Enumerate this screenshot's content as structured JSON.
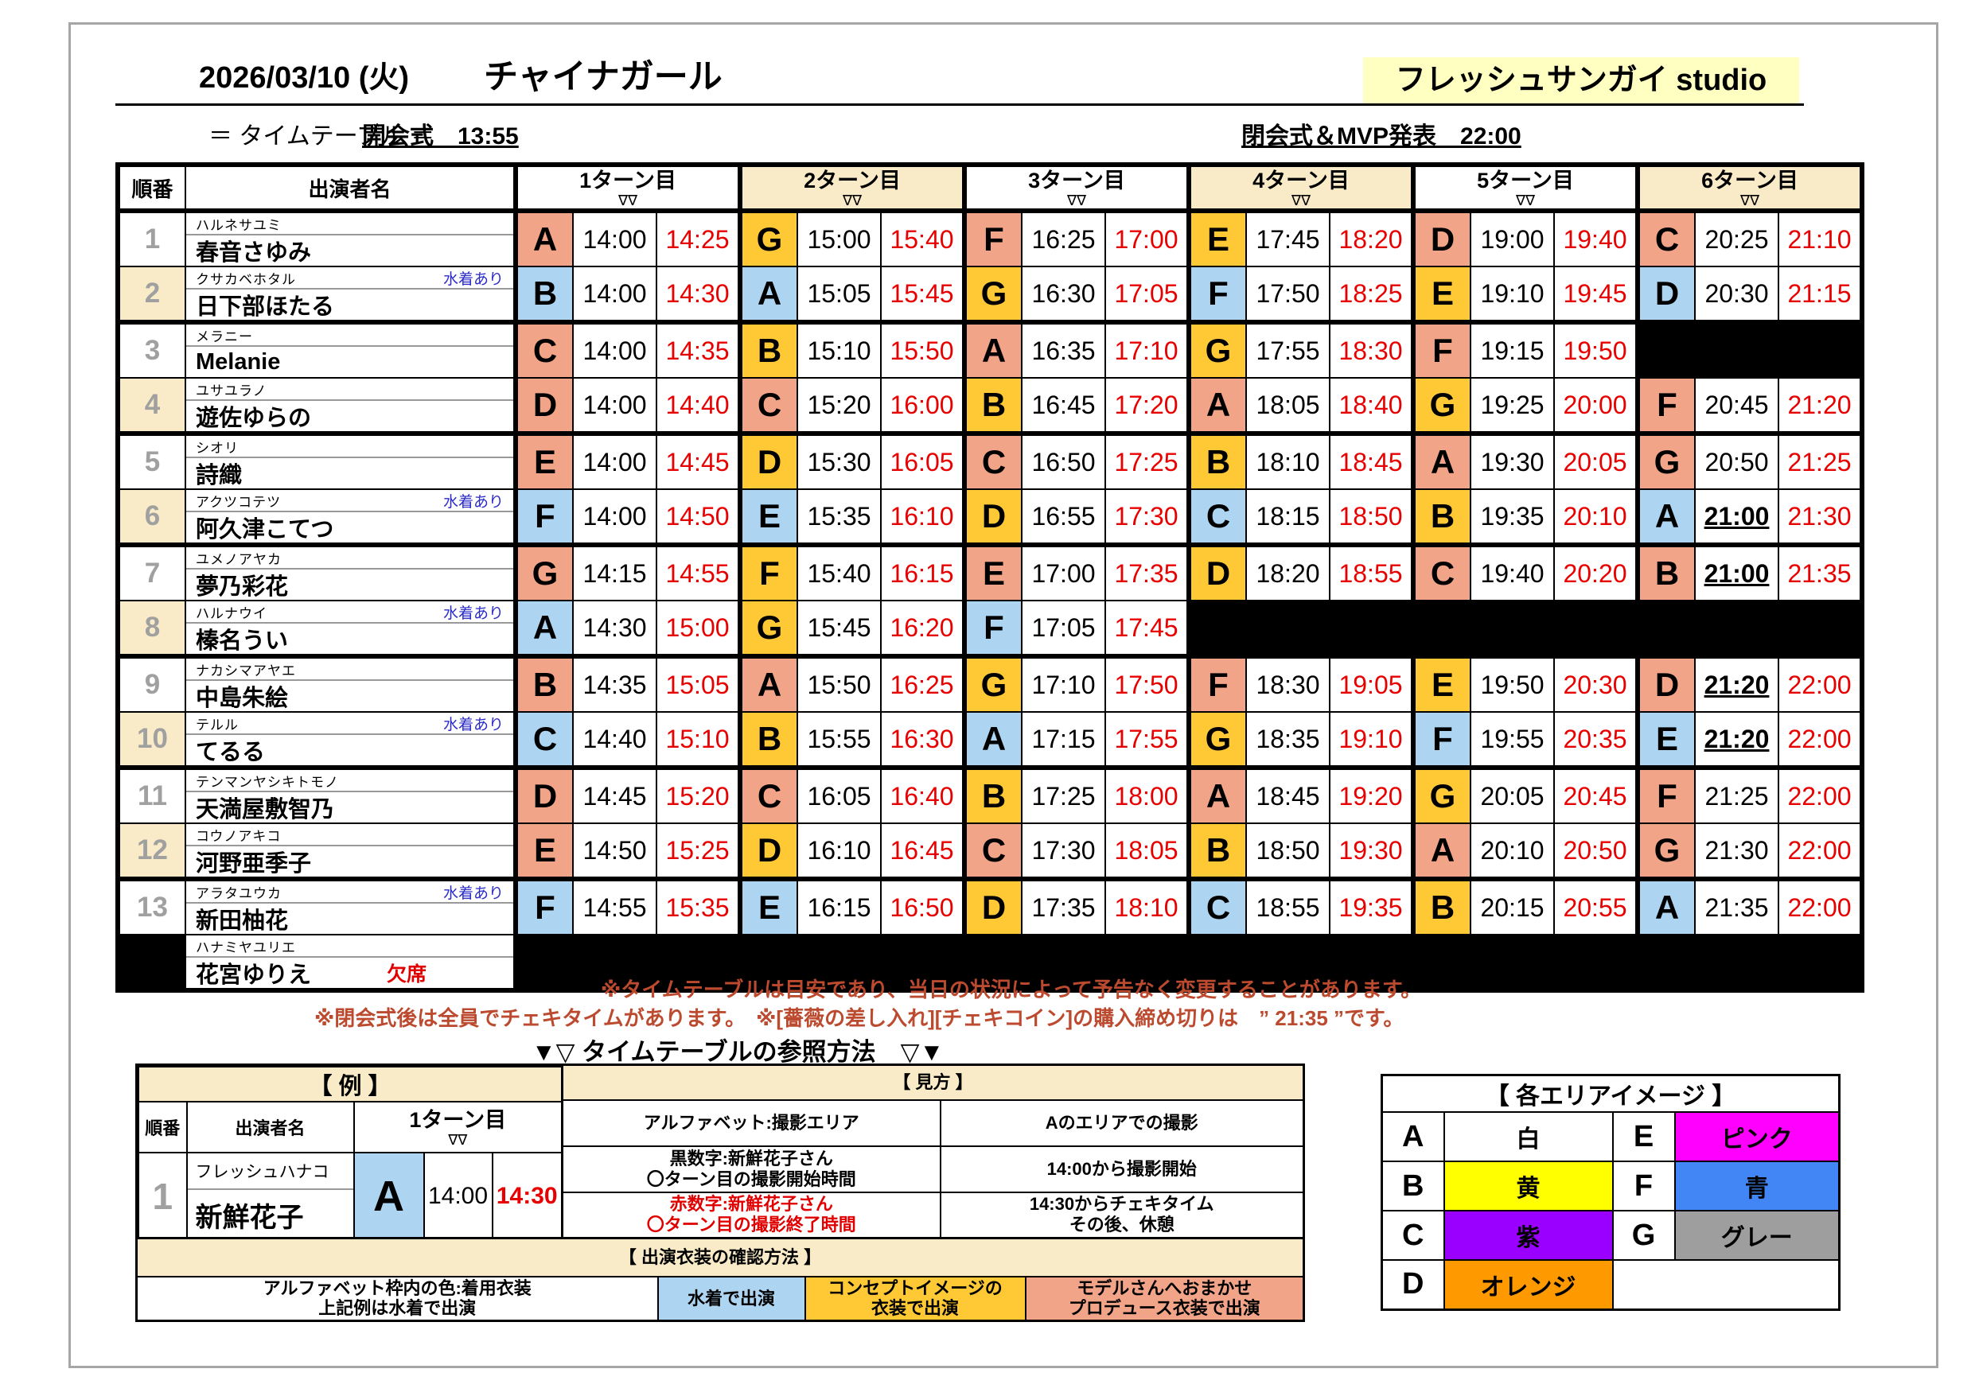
{
  "header": {
    "date": "2026/03/10 (火)",
    "title": "チャイナガール",
    "studio": "フレッシュサンガイ studio",
    "subtitle": "＝ タイムテーブル ＝",
    "opening": "開会式　13:55",
    "closing": "閉会式＆MVP発表　22:00"
  },
  "table": {
    "col_order": "順番",
    "col_name": "出演者名",
    "turn_labels": [
      "1ターン目",
      "2ターン目",
      "3ターン目",
      "4ターン目",
      "5ターン目",
      "6ターン目"
    ],
    "turn_marker": "∇∇",
    "fill_colors": {
      "s": "#F2A488",
      "g": "#FFC936",
      "b": "#ADD5F2"
    },
    "rows": [
      {
        "no": "1",
        "kana": "ハルネサユミ",
        "name": "春音さゆみ",
        "tag": "",
        "absent": false,
        "slots": [
          [
            "A",
            "s",
            "14:00",
            "14:25",
            0
          ],
          [
            "G",
            "g",
            "15:00",
            "15:40",
            0
          ],
          [
            "F",
            "s",
            "16:25",
            "17:00",
            0
          ],
          [
            "E",
            "g",
            "17:45",
            "18:20",
            0
          ],
          [
            "D",
            "s",
            "19:00",
            "19:40",
            0
          ],
          [
            "C",
            "s",
            "20:25",
            "21:10",
            0
          ]
        ]
      },
      {
        "no": "2",
        "kana": "クサカベホタル",
        "name": "日下部ほたる",
        "tag": "水着あり",
        "absent": false,
        "slots": [
          [
            "B",
            "b",
            "14:00",
            "14:30",
            0
          ],
          [
            "A",
            "b",
            "15:05",
            "15:45",
            0
          ],
          [
            "G",
            "g",
            "16:30",
            "17:05",
            0
          ],
          [
            "F",
            "b",
            "17:50",
            "18:25",
            0
          ],
          [
            "E",
            "g",
            "19:10",
            "19:45",
            0
          ],
          [
            "D",
            "b",
            "20:30",
            "21:15",
            0
          ]
        ]
      },
      {
        "no": "3",
        "kana": "メラニー",
        "name": "Melanie",
        "tag": "",
        "absent": false,
        "slots": [
          [
            "C",
            "s",
            "14:00",
            "14:35",
            0
          ],
          [
            "B",
            "g",
            "15:10",
            "15:50",
            0
          ],
          [
            "A",
            "s",
            "16:35",
            "17:10",
            0
          ],
          [
            "G",
            "g",
            "17:55",
            "18:30",
            0
          ],
          [
            "F",
            "s",
            "19:15",
            "19:50",
            0
          ],
          null
        ]
      },
      {
        "no": "4",
        "kana": "ユサユラノ",
        "name": "遊佐ゆらの",
        "tag": "",
        "absent": false,
        "slots": [
          [
            "D",
            "s",
            "14:00",
            "14:40",
            0
          ],
          [
            "C",
            "s",
            "15:20",
            "16:00",
            0
          ],
          [
            "B",
            "g",
            "16:45",
            "17:20",
            0
          ],
          [
            "A",
            "s",
            "18:05",
            "18:40",
            0
          ],
          [
            "G",
            "g",
            "19:25",
            "20:00",
            0
          ],
          [
            "F",
            "s",
            "20:45",
            "21:20",
            0
          ]
        ]
      },
      {
        "no": "5",
        "kana": "シオリ",
        "name": "詩織",
        "tag": "",
        "absent": false,
        "slots": [
          [
            "E",
            "s",
            "14:00",
            "14:45",
            0
          ],
          [
            "D",
            "g",
            "15:30",
            "16:05",
            0
          ],
          [
            "C",
            "s",
            "16:50",
            "17:25",
            0
          ],
          [
            "B",
            "g",
            "18:10",
            "18:45",
            0
          ],
          [
            "A",
            "s",
            "19:30",
            "20:05",
            0
          ],
          [
            "G",
            "s",
            "20:50",
            "21:25",
            0
          ]
        ]
      },
      {
        "no": "6",
        "kana": "アクツコテツ",
        "name": "阿久津こてつ",
        "tag": "水着あり",
        "absent": false,
        "slots": [
          [
            "F",
            "b",
            "14:00",
            "14:50",
            0
          ],
          [
            "E",
            "b",
            "15:35",
            "16:10",
            0
          ],
          [
            "D",
            "g",
            "16:55",
            "17:30",
            0
          ],
          [
            "C",
            "b",
            "18:15",
            "18:50",
            0
          ],
          [
            "B",
            "g",
            "19:35",
            "20:10",
            0
          ],
          [
            "A",
            "b",
            "21:00",
            "21:30",
            1
          ]
        ]
      },
      {
        "no": "7",
        "kana": "ユメノアヤカ",
        "name": "夢乃彩花",
        "tag": "",
        "absent": false,
        "slots": [
          [
            "G",
            "s",
            "14:15",
            "14:55",
            0
          ],
          [
            "F",
            "g",
            "15:40",
            "16:15",
            0
          ],
          [
            "E",
            "s",
            "17:00",
            "17:35",
            0
          ],
          [
            "D",
            "g",
            "18:20",
            "18:55",
            0
          ],
          [
            "C",
            "s",
            "19:40",
            "20:20",
            0
          ],
          [
            "B",
            "s",
            "21:00",
            "21:35",
            1
          ]
        ]
      },
      {
        "no": "8",
        "kana": "ハルナウイ",
        "name": "榛名うい",
        "tag": "水着あり",
        "absent": false,
        "slots": [
          [
            "A",
            "b",
            "14:30",
            "15:00",
            0
          ],
          [
            "G",
            "g",
            "15:45",
            "16:20",
            0
          ],
          [
            "F",
            "b",
            "17:05",
            "17:45",
            0
          ],
          null,
          null,
          null
        ]
      },
      {
        "no": "9",
        "kana": "ナカシマアヤエ",
        "name": "中島朱絵",
        "tag": "",
        "absent": false,
        "slots": [
          [
            "B",
            "s",
            "14:35",
            "15:05",
            0
          ],
          [
            "A",
            "s",
            "15:50",
            "16:25",
            0
          ],
          [
            "G",
            "g",
            "17:10",
            "17:50",
            0
          ],
          [
            "F",
            "s",
            "18:30",
            "19:05",
            0
          ],
          [
            "E",
            "g",
            "19:50",
            "20:30",
            0
          ],
          [
            "D",
            "s",
            "21:20",
            "22:00",
            1
          ]
        ]
      },
      {
        "no": "10",
        "kana": "テルル",
        "name": "てるる",
        "tag": "水着あり",
        "absent": false,
        "slots": [
          [
            "C",
            "b",
            "14:40",
            "15:10",
            0
          ],
          [
            "B",
            "g",
            "15:55",
            "16:30",
            0
          ],
          [
            "A",
            "b",
            "17:15",
            "17:55",
            0
          ],
          [
            "G",
            "g",
            "18:35",
            "19:10",
            0
          ],
          [
            "F",
            "b",
            "19:55",
            "20:35",
            0
          ],
          [
            "E",
            "b",
            "21:20",
            "22:00",
            1
          ]
        ]
      },
      {
        "no": "11",
        "kana": "テンマンヤシキトモノ",
        "name": "天満屋敷智乃",
        "tag": "",
        "absent": false,
        "slots": [
          [
            "D",
            "s",
            "14:45",
            "15:20",
            0
          ],
          [
            "C",
            "s",
            "16:05",
            "16:40",
            0
          ],
          [
            "B",
            "g",
            "17:25",
            "18:00",
            0
          ],
          [
            "A",
            "s",
            "18:45",
            "19:20",
            0
          ],
          [
            "G",
            "g",
            "20:05",
            "20:45",
            0
          ],
          [
            "F",
            "s",
            "21:25",
            "22:00",
            0
          ]
        ]
      },
      {
        "no": "12",
        "kana": "コウノアキコ",
        "name": "河野亜季子",
        "tag": "",
        "absent": false,
        "slots": [
          [
            "E",
            "s",
            "14:50",
            "15:25",
            0
          ],
          [
            "D",
            "g",
            "16:10",
            "16:45",
            0
          ],
          [
            "C",
            "s",
            "17:30",
            "18:05",
            0
          ],
          [
            "B",
            "g",
            "18:50",
            "19:30",
            0
          ],
          [
            "A",
            "s",
            "20:10",
            "20:50",
            0
          ],
          [
            "G",
            "s",
            "21:30",
            "22:00",
            0
          ]
        ]
      },
      {
        "no": "13",
        "kana": "アラタユウカ",
        "name": "新田柚花",
        "tag": "水着あり",
        "absent": false,
        "slots": [
          [
            "F",
            "b",
            "14:55",
            "15:35",
            0
          ],
          [
            "E",
            "b",
            "16:15",
            "16:50",
            0
          ],
          [
            "D",
            "g",
            "17:35",
            "18:10",
            0
          ],
          [
            "C",
            "b",
            "18:55",
            "19:35",
            0
          ],
          [
            "B",
            "g",
            "20:15",
            "20:55",
            0
          ],
          [
            "A",
            "b",
            "21:35",
            "22:00",
            0
          ]
        ]
      },
      {
        "no": "",
        "kana": "ハナミヤユリエ",
        "name": "花宮ゆりえ",
        "tag": "欠席",
        "absent": true,
        "slots": [
          null,
          null,
          null,
          null,
          null,
          null
        ]
      }
    ]
  },
  "notes": [
    "※タイムテーブルは目安であり、当日の状況によって予告なく変更することがあります。",
    "※閉会式後は全員でチェキタイムがあります。　※[薔薇の差し入れ][チェキコイン]の購入締め切りは　” 21:35 ”です。"
  ],
  "reference": {
    "title": "▼▽ タイムテーブルの参照方法　▽▼"
  },
  "example": {
    "header": "【 例 】",
    "col_order": "順番",
    "col_name": "出演者名",
    "turn_label": "1ターン目",
    "turn_marker": "∇∇",
    "row": {
      "no": "1",
      "kana": "フレッシュハナコ",
      "name": "新鮮花子",
      "area": "A",
      "start": "14:00",
      "end": "14:30"
    }
  },
  "howto": {
    "header": "【 見方 】",
    "rows": [
      {
        "left": "アルファベット:撮影エリア",
        "right": "Aのエリアでの撮影"
      },
      {
        "left": "黒数字:新鮮花子さん\n〇ターン目の撮影開始時間",
        "right": "14:00から撮影開始"
      },
      {
        "left": "赤数字:新鮮花子さん\n〇ターン目の撮影終了時間",
        "right": "14:30からチェキタイム\nその後、休憩"
      }
    ]
  },
  "costume": {
    "header": "【 出演衣装の確認方法 】",
    "cells": [
      {
        "text": "アルファベット枠内の色:着用衣装\n上記例は水着で出演",
        "color": "#FFFFFF"
      },
      {
        "text": "水着で出演",
        "color": "#ADD5F2"
      },
      {
        "text": "コンセプトイメージの\n衣装で出演",
        "color": "#FFC936"
      },
      {
        "text": "モデルさんへおまかせ\nプロデュース衣装で出演",
        "color": "#F2A488"
      }
    ]
  },
  "areas": {
    "header": "【 各エリアイメージ 】",
    "items": [
      {
        "letter": "A",
        "label": "白",
        "color": "#FFFFFF"
      },
      {
        "letter": "E",
        "label": "ピンク",
        "color": "#FF00FF"
      },
      {
        "letter": "B",
        "label": "黄",
        "color": "#FFFF00"
      },
      {
        "letter": "F",
        "label": "青",
        "color": "#4285F4"
      },
      {
        "letter": "C",
        "label": "紫",
        "color": "#9900FF"
      },
      {
        "letter": "G",
        "label": "グレー",
        "color": "#9E9E9E"
      },
      {
        "letter": "D",
        "label": "オレンジ",
        "color": "#FF9900"
      }
    ]
  }
}
